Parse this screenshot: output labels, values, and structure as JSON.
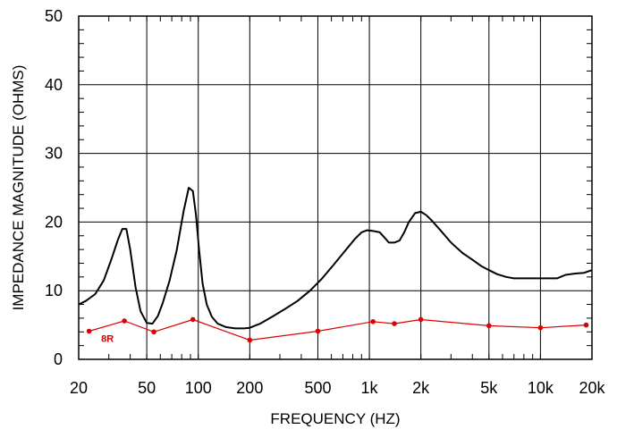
{
  "chart_data": {
    "type": "line",
    "xlabel": "FREQUENCY  (HZ)",
    "ylabel": "IMPEDANCE MAGNITUDE  (OHMS)",
    "x_scale": "log",
    "xlim": [
      20,
      20000
    ],
    "ylim": [
      0,
      50
    ],
    "grid": true,
    "x_ticks": [
      {
        "value": 20,
        "label": "20"
      },
      {
        "value": 50,
        "label": "50"
      },
      {
        "value": 100,
        "label": "100"
      },
      {
        "value": 200,
        "label": "200"
      },
      {
        "value": 500,
        "label": "500"
      },
      {
        "value": 1000,
        "label": "1k"
      },
      {
        "value": 2000,
        "label": "2k"
      },
      {
        "value": 5000,
        "label": "5k"
      },
      {
        "value": 10000,
        "label": "10k"
      },
      {
        "value": 20000,
        "label": "20k"
      }
    ],
    "y_ticks": [
      {
        "value": 0,
        "label": "0"
      },
      {
        "value": 10,
        "label": "10"
      },
      {
        "value": 20,
        "label": "20"
      },
      {
        "value": 30,
        "label": "30"
      },
      {
        "value": 40,
        "label": "40"
      },
      {
        "value": 50,
        "label": "50"
      }
    ],
    "series": [
      {
        "color": "#000000",
        "x": [
          20,
          22,
          25,
          28,
          31,
          34,
          36,
          38,
          40,
          43,
          46,
          50,
          54,
          58,
          62,
          68,
          75,
          82,
          88,
          93,
          97,
          101,
          106,
          112,
          120,
          130,
          145,
          165,
          185,
          200,
          230,
          270,
          320,
          380,
          450,
          530,
          620,
          720,
          820,
          900,
          970,
          1050,
          1150,
          1250,
          1300,
          1400,
          1500,
          1600,
          1700,
          1850,
          2000,
          2150,
          2300,
          2600,
          3000,
          3500,
          4000,
          4500,
          5000,
          5600,
          6300,
          7000,
          8000,
          9000,
          10000,
          11000,
          12500,
          14000,
          16000,
          18000,
          20000
        ],
        "y": [
          8.0,
          8.5,
          9.5,
          11.5,
          14.5,
          17.5,
          19.0,
          19.0,
          16.0,
          10.5,
          7.0,
          5.3,
          5.2,
          6.3,
          8.2,
          11.5,
          16.0,
          21.5,
          25.0,
          24.5,
          21.0,
          16.0,
          11.0,
          8.0,
          6.2,
          5.2,
          4.7,
          4.5,
          4.5,
          4.6,
          5.2,
          6.2,
          7.3,
          8.5,
          10.0,
          11.8,
          13.8,
          15.8,
          17.5,
          18.5,
          18.8,
          18.7,
          18.5,
          17.5,
          17.0,
          17.0,
          17.3,
          18.5,
          20.0,
          21.3,
          21.5,
          21.0,
          20.3,
          18.8,
          17.0,
          15.5,
          14.5,
          13.6,
          13.0,
          12.4,
          12.0,
          11.8,
          11.8,
          11.8,
          11.8,
          11.8,
          11.8,
          12.3,
          12.5,
          12.6,
          13.0
        ]
      },
      {
        "name": "8R",
        "color": "#dd0000",
        "markers": true,
        "x": [
          23,
          37,
          55,
          93,
          200,
          500,
          1050,
          1400,
          2000,
          5000,
          10000,
          18500
        ],
        "y": [
          4.1,
          5.6,
          4.0,
          5.8,
          2.8,
          4.1,
          5.5,
          5.2,
          5.8,
          4.9,
          4.6,
          5.0
        ]
      }
    ]
  }
}
